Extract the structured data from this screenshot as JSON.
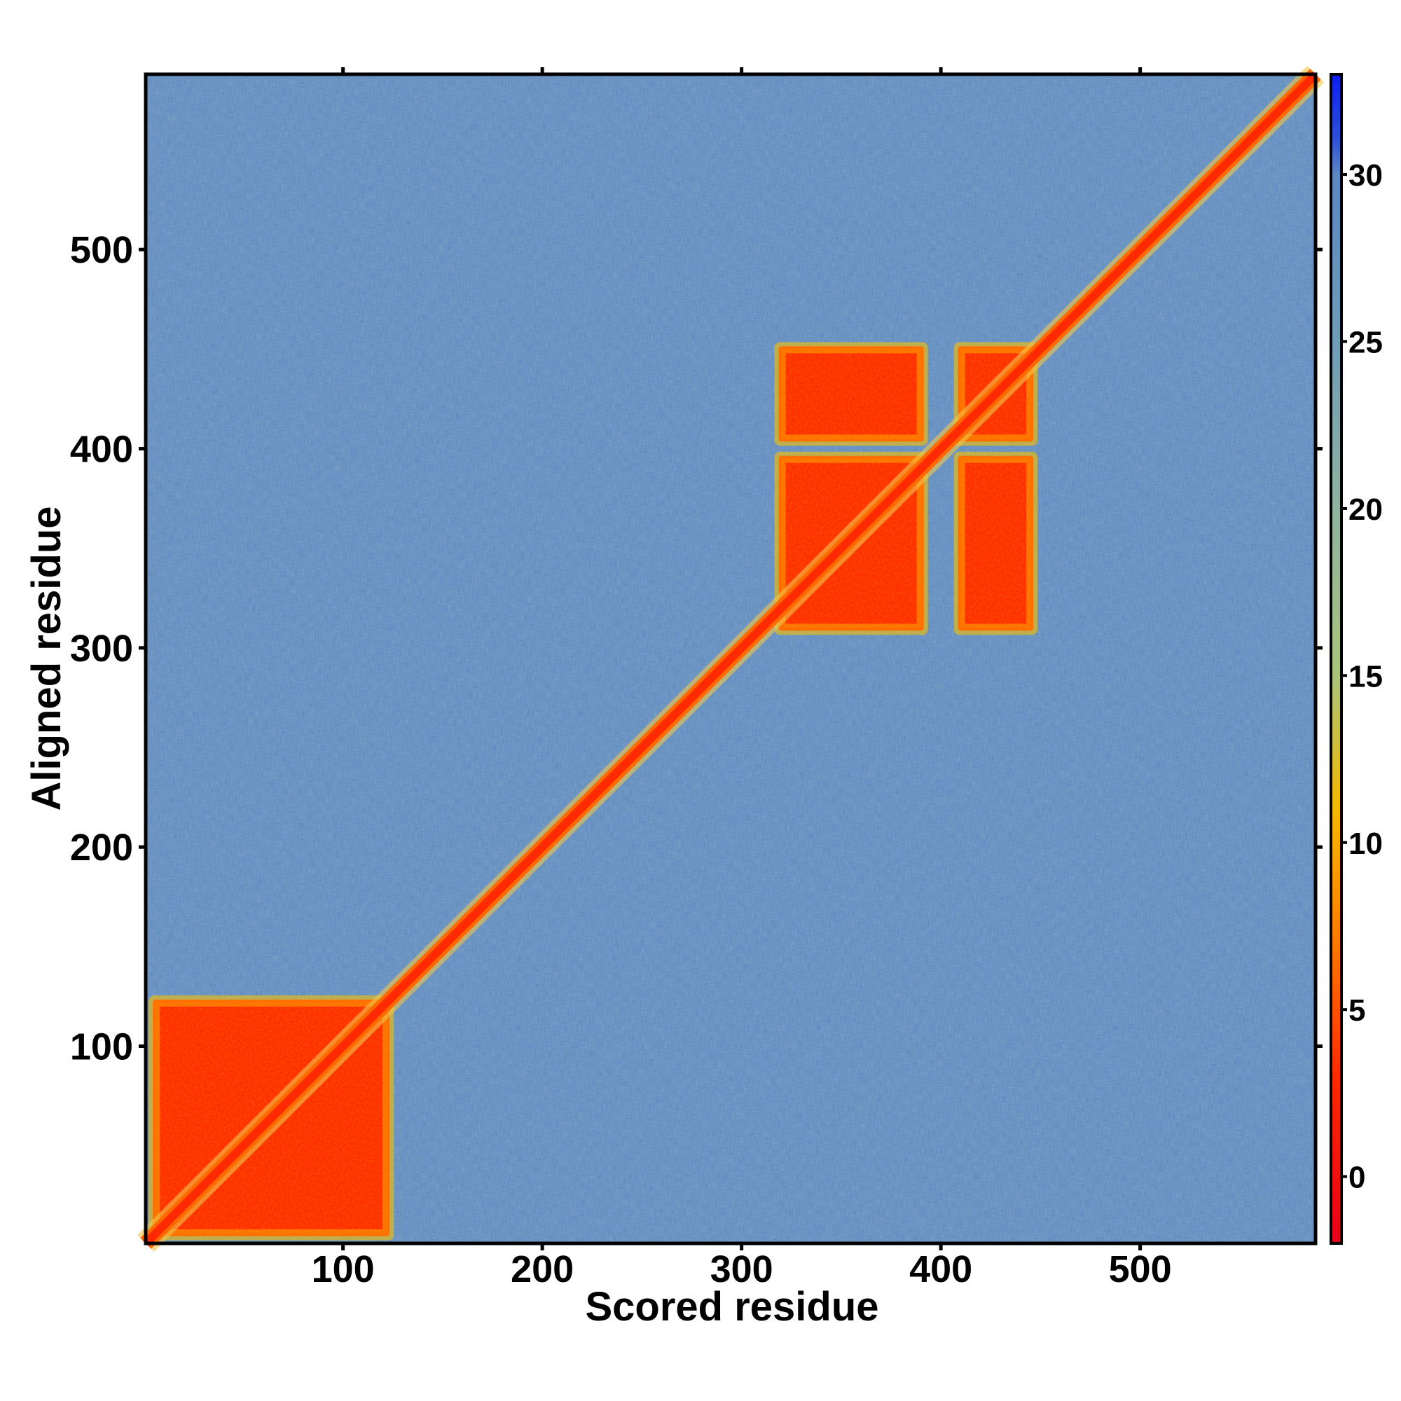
{
  "chart_data": {
    "type": "heatmap",
    "title": "",
    "xlabel": "Scored residue",
    "ylabel": "Aligned residue",
    "xlim": [
      1,
      588
    ],
    "ylim": [
      1,
      588
    ],
    "x_ticks": [
      100,
      200,
      300,
      400,
      500
    ],
    "y_ticks": [
      100,
      200,
      300,
      400,
      500
    ],
    "colorbar": {
      "range": [
        -2,
        33
      ],
      "ticks": [
        0,
        5,
        10,
        15,
        20,
        25,
        30
      ],
      "stops": [
        {
          "value": -2,
          "color": "#e8001a"
        },
        {
          "value": 3,
          "color": "#ff2a00"
        },
        {
          "value": 7,
          "color": "#ff7a00"
        },
        {
          "value": 11,
          "color": "#f5b800"
        },
        {
          "value": 15,
          "color": "#a9c47a"
        },
        {
          "value": 20,
          "color": "#8fb3a0"
        },
        {
          "value": 25,
          "color": "#6f9cb8"
        },
        {
          "value": 30,
          "color": "#5b88c0"
        },
        {
          "value": 31,
          "color": "#2f53d8"
        },
        {
          "value": 33,
          "color": "#0a1ef0"
        }
      ]
    },
    "background_value": 28,
    "diagonal_value": 1,
    "blocks": [
      {
        "x_range": [
          6,
          122
        ],
        "y_range": [
          6,
          122
        ],
        "value": 3
      },
      {
        "x_range": [
          320,
          390
        ],
        "y_range": [
          310,
          395
        ],
        "value": 3
      },
      {
        "x_range": [
          320,
          390
        ],
        "y_range": [
          405,
          450
        ],
        "value": 3
      },
      {
        "x_range": [
          410,
          445
        ],
        "y_range": [
          310,
          395
        ],
        "value": 3
      },
      {
        "x_range": [
          410,
          445
        ],
        "y_range": [
          405,
          450
        ],
        "value": 3
      }
    ],
    "grid": false,
    "legend": "colorbar-right"
  }
}
